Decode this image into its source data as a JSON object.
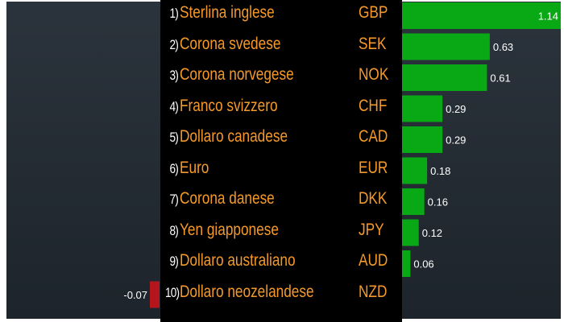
{
  "chart_data": {
    "type": "bar",
    "orientation": "horizontal",
    "grid": false,
    "xlim": [
      -0.07,
      1.14
    ],
    "colors": {
      "positive": "#09a815",
      "negative": "#b5161d",
      "name_text": "#f59a2a",
      "rank_text": "#ffffff"
    },
    "rows": [
      {
        "rank": "1)",
        "name": "Sterlina inglese",
        "code": "GBP",
        "value": 1.14,
        "label": "1.14"
      },
      {
        "rank": "2)",
        "name": "Corona svedese",
        "code": "SEK",
        "value": 0.63,
        "label": "0.63"
      },
      {
        "rank": "3)",
        "name": "Corona norvegese",
        "code": "NOK",
        "value": 0.61,
        "label": "0.61"
      },
      {
        "rank": "4)",
        "name": "Franco svizzero",
        "code": "CHF",
        "value": 0.29,
        "label": "0.29"
      },
      {
        "rank": "5)",
        "name": "Dollaro canadese",
        "code": "CAD",
        "value": 0.29,
        "label": "0.29"
      },
      {
        "rank": "6)",
        "name": "Euro",
        "code": "EUR",
        "value": 0.18,
        "label": "0.18"
      },
      {
        "rank": "7)",
        "name": "Corona danese",
        "code": "DKK",
        "value": 0.16,
        "label": "0.16"
      },
      {
        "rank": "8)",
        "name": "Yen giapponese",
        "code": "JPY",
        "value": 0.12,
        "label": "0.12"
      },
      {
        "rank": "9)",
        "name": "Dollaro australiano",
        "code": "AUD",
        "value": 0.06,
        "label": "0.06"
      },
      {
        "rank": "10)",
        "name": "Dollaro neozelandese",
        "code": "NZD",
        "value": -0.07,
        "label": "-0.07"
      }
    ]
  }
}
